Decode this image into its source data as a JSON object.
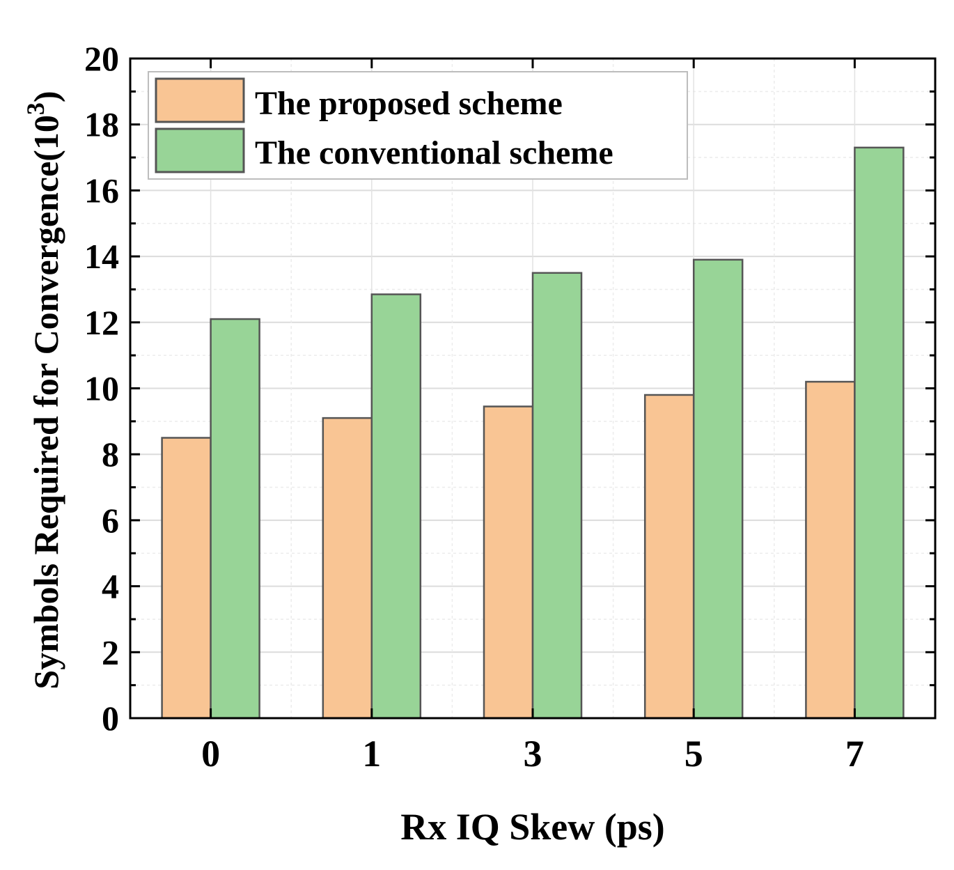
{
  "chart_data": {
    "type": "bar",
    "title": "",
    "xlabel": "Rx IQ Skew (ps)",
    "ylabel_main": "Symbols Required for Convergence(10",
    "ylabel_exp": "3",
    "ylabel_close": ")",
    "categories": [
      "0",
      "1",
      "3",
      "5",
      "7"
    ],
    "series": [
      {
        "name": "The proposed scheme",
        "color": "#f9c594",
        "values": [
          8.5,
          9.1,
          9.45,
          9.8,
          10.2
        ]
      },
      {
        "name": "The conventional scheme",
        "color": "#98d497",
        "values": [
          12.1,
          12.85,
          13.5,
          13.9,
          17.3
        ]
      }
    ],
    "ylim": [
      0,
      20
    ],
    "yticks": [
      "0",
      "2",
      "4",
      "6",
      "8",
      "10",
      "12",
      "14",
      "16",
      "18",
      "20"
    ],
    "grid": true,
    "legend_position": "top-left"
  }
}
